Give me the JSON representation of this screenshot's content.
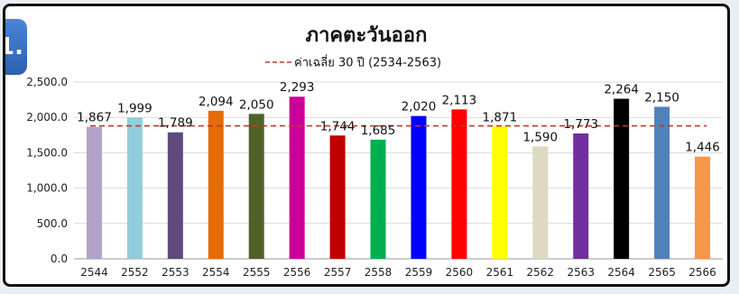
{
  "chart_data": {
    "type": "bar",
    "title": "ภาคตะวันออก",
    "corner_tab_label": "1.",
    "categories": [
      "2544",
      "2552",
      "2553",
      "2554",
      "2555",
      "2556",
      "2557",
      "2558",
      "2559",
      "2560",
      "2561",
      "2562",
      "2563",
      "2564",
      "2565",
      "2566"
    ],
    "values": [
      1867,
      1999,
      1789,
      2094,
      2050,
      2293,
      1744,
      1685,
      2020,
      2113,
      1871,
      1590,
      1773,
      2264,
      2150,
      1446
    ],
    "value_labels": [
      "1,867",
      "1,999",
      "1,789",
      "2,094",
      "2,050",
      "2,293",
      "1,744",
      "1,685",
      "2,020",
      "2,113",
      "1,871",
      "1,590",
      "1,773",
      "2,264",
      "2,150",
      "1,446"
    ],
    "bar_colors": [
      "#b3a2c8",
      "#92cddc",
      "#604a7b",
      "#e36c09",
      "#4f6228",
      "#cc0099",
      "#c00000",
      "#00b050",
      "#0000ff",
      "#ff0000",
      "#ffff00",
      "#ddd9c3",
      "#7030a0",
      "#000000",
      "#4f81bd",
      "#f79646"
    ],
    "reference_line": {
      "label": "ค่าเฉลี่ย 30 ปี (2534-2563)",
      "value": 1880,
      "color": "#c0392b",
      "style": "dashed"
    },
    "yticks": [
      "0.0",
      "500.0",
      "1,000.0",
      "1,500.0",
      "2,000.0",
      "2,500.0"
    ],
    "ytick_values": [
      0,
      500,
      1000,
      1500,
      2000,
      2500
    ],
    "ylim": [
      0,
      2500
    ],
    "xlabel": "",
    "ylabel": "",
    "grid": true,
    "legend_position": "top-center"
  }
}
